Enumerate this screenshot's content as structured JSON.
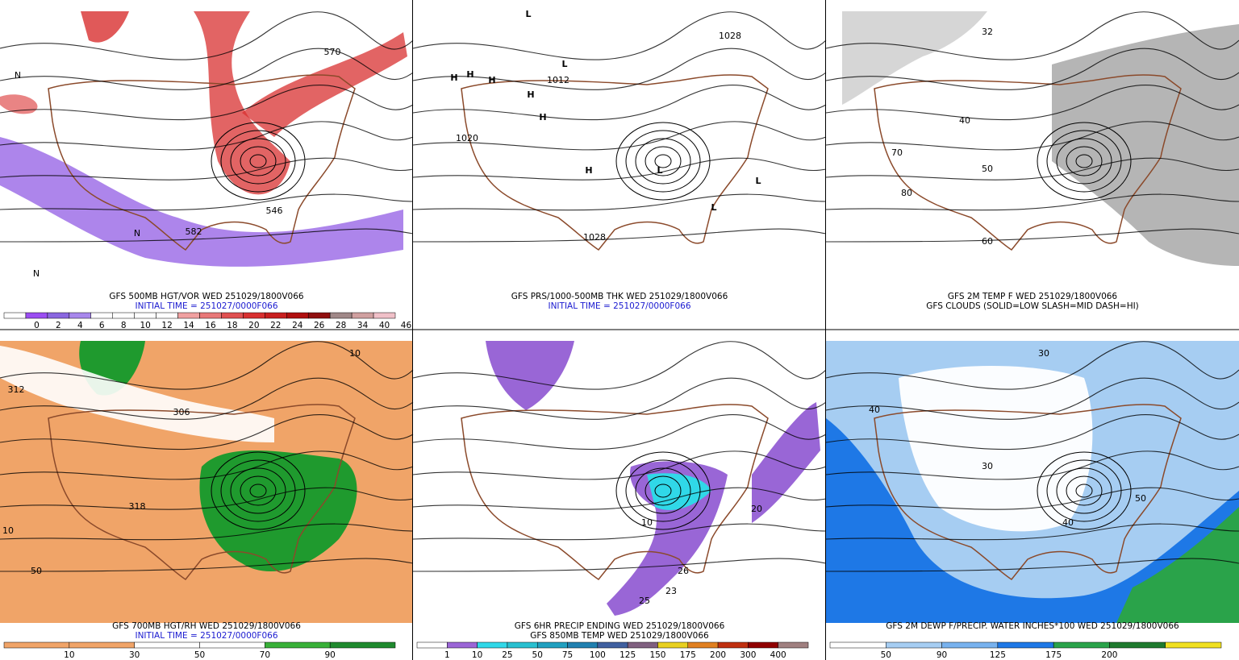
{
  "panels": [
    {
      "title": "GFS 500MB HGT/VOR WED 251029/1800V066",
      "subtitle": "INITIAL TIME = 251027/0000F066",
      "legend": [
        "0",
        "2",
        "4",
        "6",
        "8",
        "10",
        "12",
        "14",
        "16",
        "18",
        "20",
        "22",
        "24",
        "26",
        "28",
        "34",
        "40",
        "46"
      ],
      "map_labels": [
        "570",
        "582",
        "546",
        "N",
        "N",
        "N"
      ]
    },
    {
      "title": "GFS PRS/1000-500MB THK WED 251029/1800V066",
      "subtitle": "INITIAL TIME = 251027/0000F066",
      "legend": [],
      "map_labels": [
        "H",
        "H",
        "H",
        "H",
        "H",
        "H",
        "L",
        "L",
        "L",
        "L",
        "L",
        "1028",
        "1020",
        "1012",
        "1028"
      ]
    },
    {
      "title": "GFS 2M TEMP F WED 251029/1800V066",
      "subtitle": "GFS CLOUDS (SOLID=LOW SLASH=MID DASH=HI)",
      "legend": [],
      "map_labels": [
        "32",
        "40",
        "50",
        "60",
        "70",
        "80"
      ]
    },
    {
      "title": "GFS 700MB HGT/RH WED 251029/1800V066",
      "subtitle": "INITIAL TIME = 251027/0000F066",
      "legend": [
        "10",
        "30",
        "50",
        "70",
        "90"
      ],
      "map_labels": [
        "50",
        "10",
        "312",
        "306",
        "318",
        "10"
      ]
    },
    {
      "title": "GFS 6HR PRECIP ENDING WED 251029/1800V066",
      "subtitle": "GFS 850MB TEMP WED 251029/1800V066",
      "legend": [
        "1",
        "10",
        "25",
        "50",
        "75",
        "100",
        "125",
        "150",
        "175",
        "200",
        "300",
        "400"
      ],
      "map_labels": [
        "20",
        "10",
        "25",
        "26",
        "23"
      ]
    },
    {
      "title": "GFS 2M DEWP F/PRECIP. WATER INCHES*100 WED 251029/1800V066",
      "subtitle": "",
      "legend": [
        "50",
        "90",
        "125",
        "175",
        "200"
      ],
      "map_labels": [
        "40",
        "30",
        "50",
        "40",
        "30"
      ]
    }
  ]
}
